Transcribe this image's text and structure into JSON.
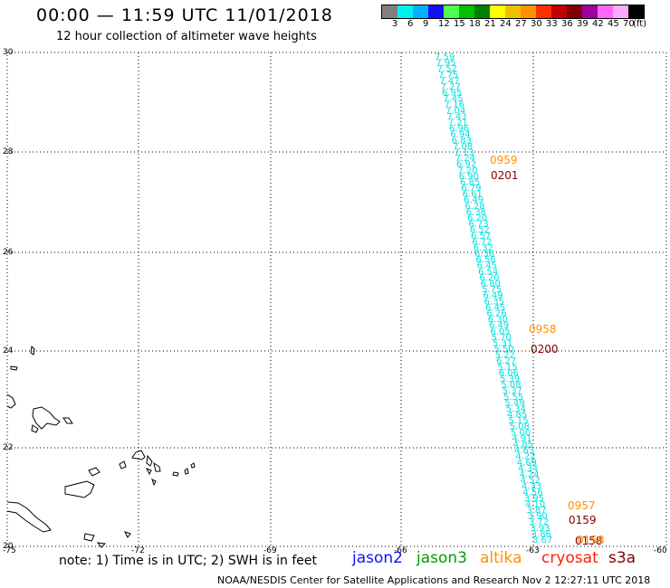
{
  "header": {
    "title": "00:00 — 11:59 UTC 11/01/2018",
    "subtitle": "12 hour collection of altimeter wave heights"
  },
  "legend": {
    "unit": "(ft)",
    "swatches": [
      "#808080",
      "#00f0f0",
      "#00b0ff",
      "#1010ff",
      "#50ff50",
      "#00c000",
      "#008000",
      "#ffff00",
      "#f0c000",
      "#ff9000",
      "#ff3000",
      "#c00000",
      "#800000",
      "#a000a0",
      "#ff66ff",
      "#ffaaff",
      "#000000"
    ],
    "labels": [
      "3",
      "6",
      "9",
      "12",
      "15",
      "18",
      "21",
      "24",
      "27",
      "30",
      "33",
      "36",
      "39",
      "42",
      "45",
      "70"
    ]
  },
  "map": {
    "lat_labels": [
      "30",
      "28",
      "26",
      "24",
      "22",
      "20"
    ],
    "lon_labels": [
      "-75",
      "-72",
      "-69",
      "-66",
      "-63",
      "-60"
    ],
    "track_color": "#00e0e0",
    "swh_values": [
      "7.59",
      "7.95",
      "7.52",
      "7.75",
      "7.47",
      "7.27",
      "6.95",
      "7.45",
      "7.16",
      "7.04",
      "7.43",
      "7.21",
      "6.96",
      "6.94",
      "6.83",
      "7.08",
      "7.13",
      "7.24",
      "6.92",
      "7.20",
      "6.90",
      "6.85",
      "6.79",
      "6.61",
      "6.49",
      "6.28",
      "6.38",
      "6.20",
      "6.73",
      "6.52",
      "6.57",
      "6.72",
      "6.32",
      "6.38",
      "6.56",
      "6.45",
      "6.54",
      "6.20",
      "6.80",
      "5.75",
      "6.49",
      "6.35",
      "6.45",
      "6.26",
      "6.30",
      "6.49",
      "6.05",
      "5.70",
      "5.31",
      "5.50",
      "5.22",
      "6.27",
      "5.15",
      "6.06",
      "5.39",
      "5.08",
      "5.37",
      "5.55",
      "5.49",
      "5.34",
      "4.85",
      "5.15",
      "5.08",
      "5.00",
      "4.91",
      "4.85",
      "4.63",
      "4.22",
      "4.69",
      "4.34",
      "4.24",
      "4.52",
      "4.33",
      "4.56",
      "3.95",
      "4.10",
      "3.87",
      "3.90",
      "3.72",
      "3.93",
      "3.86",
      "3.67"
    ],
    "pass_labels": [
      {
        "time": "0959",
        "color": "#ff9000"
      },
      {
        "time": "0201",
        "color": "#800000"
      },
      {
        "time": "0958",
        "color": "#ff9000"
      },
      {
        "time": "0200",
        "color": "#800000"
      },
      {
        "time": "0957",
        "color": "#ff9000"
      },
      {
        "time": "0159",
        "color": "#800000"
      },
      {
        "time": "0158",
        "color": "#800000"
      },
      {
        "time": "0158",
        "color": "#ff9000"
      }
    ]
  },
  "footer": {
    "note": "note:  1) Time is in UTC;  2) SWH is in feet",
    "satellites": [
      {
        "name": "jason2",
        "color": "#1010ff"
      },
      {
        "name": "jason3",
        "color": "#00a000"
      },
      {
        "name": "altika",
        "color": "#ff9000"
      },
      {
        "name": "cryosat",
        "color": "#ff2000"
      },
      {
        "name": "s3a",
        "color": "#800000"
      }
    ],
    "credit": "NOAA/NESDIS Center for Satellite Applications and Research    Nov  2 12:27:11 UTC 2018"
  }
}
